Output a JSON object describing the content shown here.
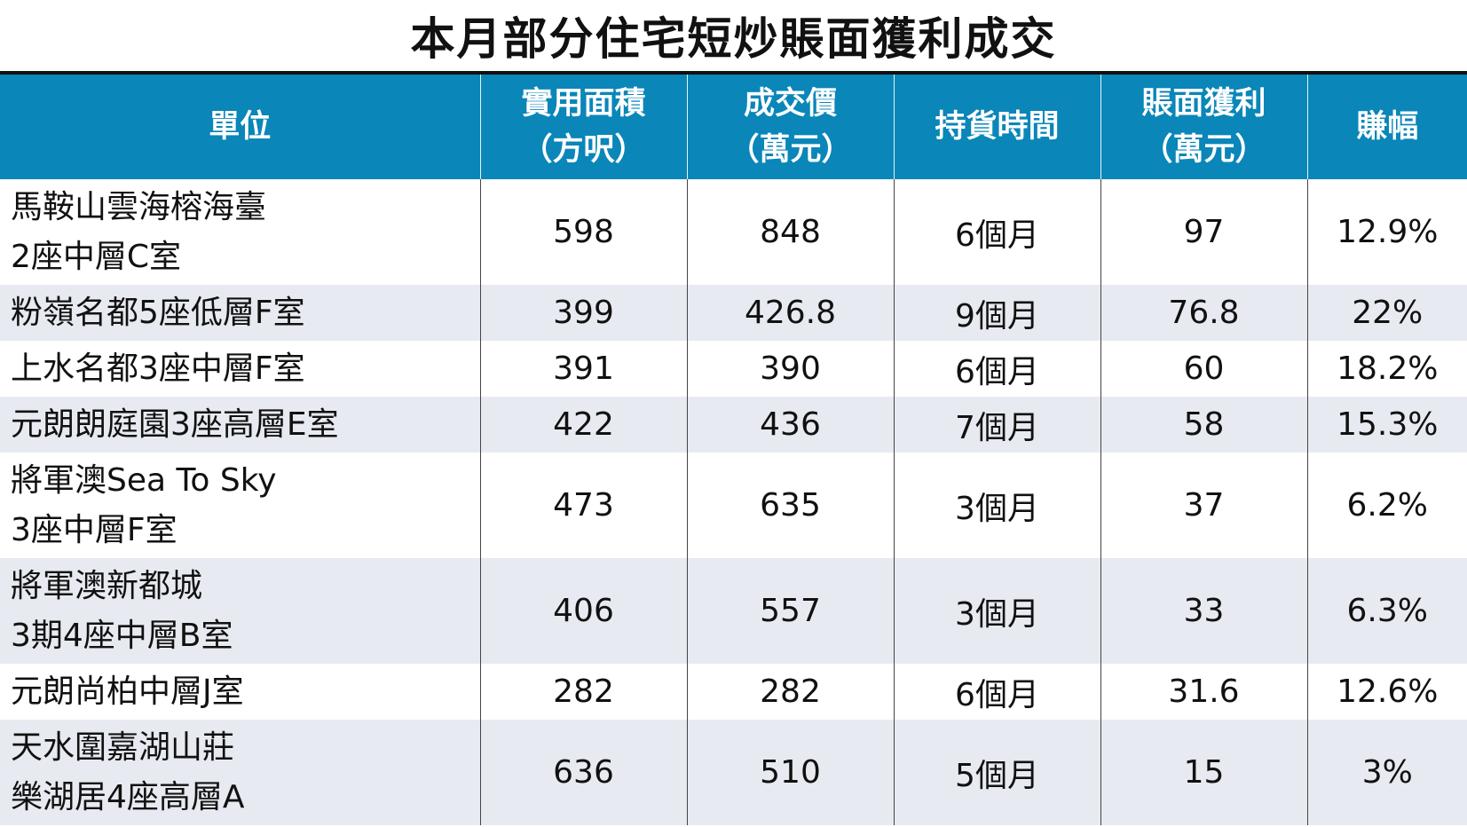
{
  "title": "本月部分住宅短炒賬面獲利成交",
  "headers": [
    {
      "lines": [
        "單位"
      ]
    },
    {
      "lines": [
        "實用面積",
        "（方呎）"
      ]
    },
    {
      "lines": [
        "成交價",
        "（萬元）"
      ]
    },
    {
      "lines": [
        "持貨時間"
      ]
    },
    {
      "lines": [
        "賬面獲利",
        "（萬元）"
      ]
    },
    {
      "lines": [
        "賺幅"
      ]
    }
  ],
  "rows": [
    {
      "unit": [
        "馬鞍山雲海榕海臺",
        "2座中層C室"
      ],
      "area": "598",
      "price": "848",
      "hold": "6個月",
      "profit": "97",
      "margin": "12.9%"
    },
    {
      "unit": [
        "粉嶺名都5座低層F室"
      ],
      "area": "399",
      "price": "426.8",
      "hold": "9個月",
      "profit": "76.8",
      "margin": "22%"
    },
    {
      "unit": [
        "上水名都3座中層F室"
      ],
      "area": "391",
      "price": "390",
      "hold": "6個月",
      "profit": "60",
      "margin": "18.2%"
    },
    {
      "unit": [
        "元朗朗庭園3座高層E室"
      ],
      "area": "422",
      "price": "436",
      "hold": "7個月",
      "profit": "58",
      "margin": "15.3%"
    },
    {
      "unit": [
        "將軍澳Sea To Sky",
        "3座中層F室"
      ],
      "area": "473",
      "price": "635",
      "hold": "3個月",
      "profit": "37",
      "margin": "6.2%"
    },
    {
      "unit": [
        "將軍澳新都城",
        "3期4座中層B室"
      ],
      "area": "406",
      "price": "557",
      "hold": "3個月",
      "profit": "33",
      "margin": "6.3%"
    },
    {
      "unit": [
        "元朗尚柏中層J室"
      ],
      "area": "282",
      "price": "282",
      "hold": "6個月",
      "profit": "31.6",
      "margin": "12.6%"
    },
    {
      "unit": [
        "天水圍嘉湖山莊",
        "樂湖居4座高層A"
      ],
      "area": "636",
      "price": "510",
      "hold": "5個月",
      "profit": "15",
      "margin": "3%"
    }
  ],
  "colors": {
    "header_bg": "#0a86b9",
    "header_text": "#ffffff",
    "stripe_bg": "#e8eaf1"
  }
}
